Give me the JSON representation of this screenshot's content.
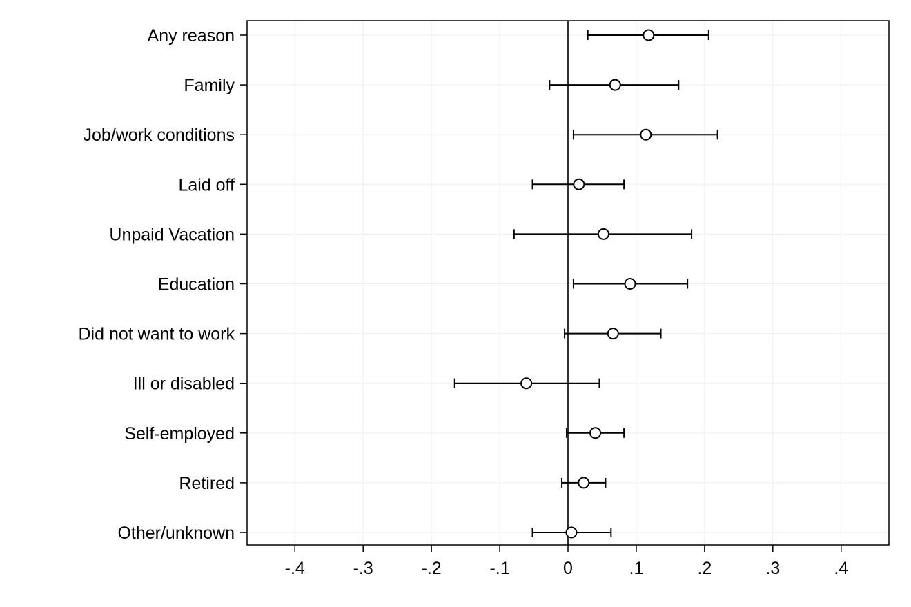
{
  "chart_data": {
    "type": "scatter",
    "subtype": "coefficient-plot",
    "title": "",
    "xlabel": "",
    "ylabel": "",
    "xlim": [
      -0.47,
      0.47
    ],
    "x_ticks": [
      -0.4,
      -0.3,
      -0.2,
      -0.1,
      0,
      0.1,
      0.2,
      0.3,
      0.4
    ],
    "x_tick_labels": [
      "-.4",
      "-.3",
      "-.2",
      "-.1",
      "0",
      ".1",
      ".2",
      ".3",
      ".4"
    ],
    "reference_line_x": 0,
    "grid": true,
    "legend": "none",
    "marker": "hollow-circle",
    "colors": {
      "marks": "#000000",
      "grid": "#eeeeee",
      "frame": "#000000",
      "background": "#ffffff"
    },
    "categories": [
      "Any reason",
      "Family",
      "Job/work conditions",
      "Laid off",
      "Unpaid Vacation",
      "Education",
      "Did not want to work",
      "Ill or disabled",
      "Self-employed",
      "Retired",
      "Other/unknown"
    ],
    "estimates": [
      0.118,
      0.069,
      0.114,
      0.016,
      0.052,
      0.091,
      0.066,
      -0.061,
      0.04,
      0.023,
      0.005
    ],
    "ci_low": [
      0.029,
      -0.027,
      0.008,
      -0.052,
      -0.079,
      0.008,
      -0.005,
      -0.166,
      -0.002,
      -0.009,
      -0.052
    ],
    "ci_high": [
      0.206,
      0.162,
      0.219,
      0.082,
      0.181,
      0.175,
      0.136,
      0.046,
      0.082,
      0.055,
      0.063
    ]
  }
}
